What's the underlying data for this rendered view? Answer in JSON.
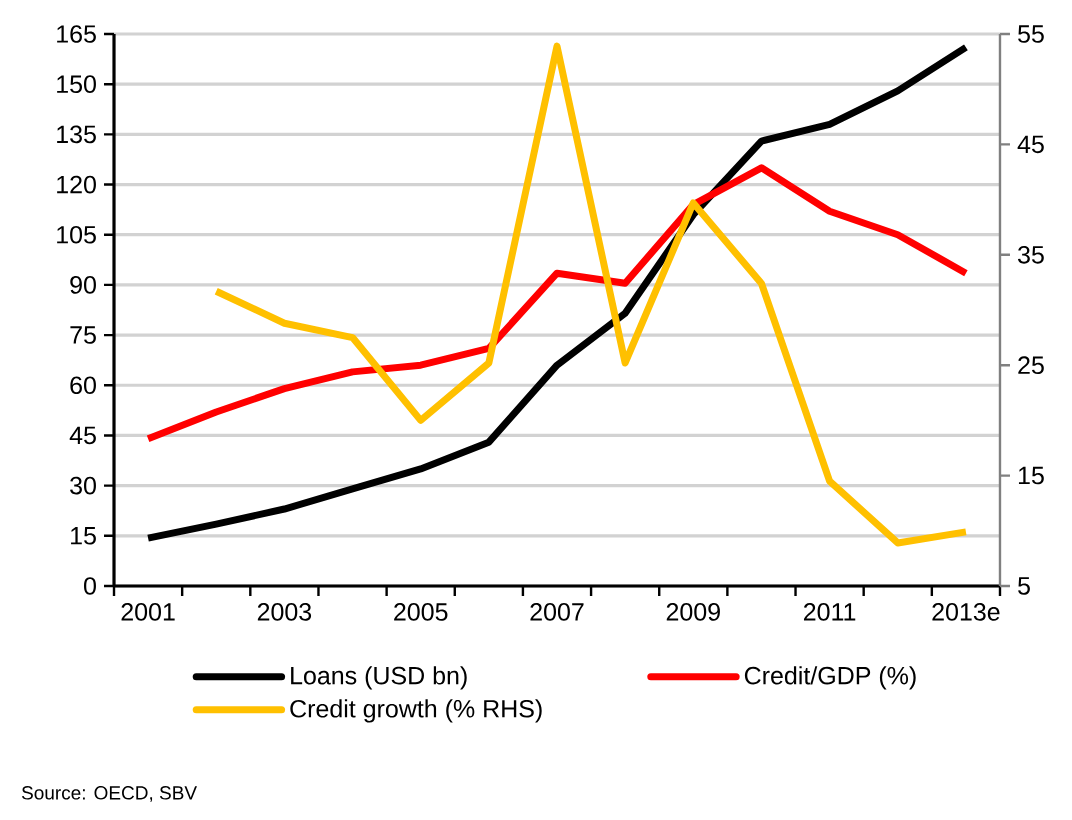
{
  "chart_data": {
    "type": "line",
    "categories": [
      "2001",
      null,
      "2003",
      null,
      "2005",
      null,
      "2007",
      null,
      "2009",
      null,
      "2011",
      null,
      "2013e"
    ],
    "series": [
      {
        "name": "Loans (USD bn)",
        "color": "#000000",
        "values": [
          14.3,
          18.5,
          23,
          29,
          35,
          43,
          66,
          81.5,
          111,
          133,
          138,
          148,
          161
        ]
      },
      {
        "name": "Credit/GDP (%)",
        "color": "#ff0000",
        "values": [
          44,
          52,
          59,
          64,
          66,
          71,
          93.5,
          90.5,
          114,
          125,
          112,
          105,
          93.5
        ]
      },
      {
        "name": "Credit growth (% RHS)",
        "color": "#ffc000",
        "axis": "y2",
        "values": [
          null,
          31.7,
          28.8,
          27.5,
          20,
          25.2,
          53.9,
          25.2,
          39.7,
          32.4,
          14.5,
          8.9,
          9.9
        ]
      }
    ],
    "ylim": [
      0,
      165
    ],
    "yticks": [
      0,
      15,
      30,
      45,
      60,
      75,
      90,
      105,
      120,
      135,
      150,
      165
    ],
    "y2lim": [
      5,
      55
    ],
    "y2ticks": [
      5,
      15,
      25,
      35,
      45,
      55
    ],
    "grid": "y",
    "legend": "bottom",
    "annotations": [
      "Source: OECD, SBV"
    ]
  }
}
